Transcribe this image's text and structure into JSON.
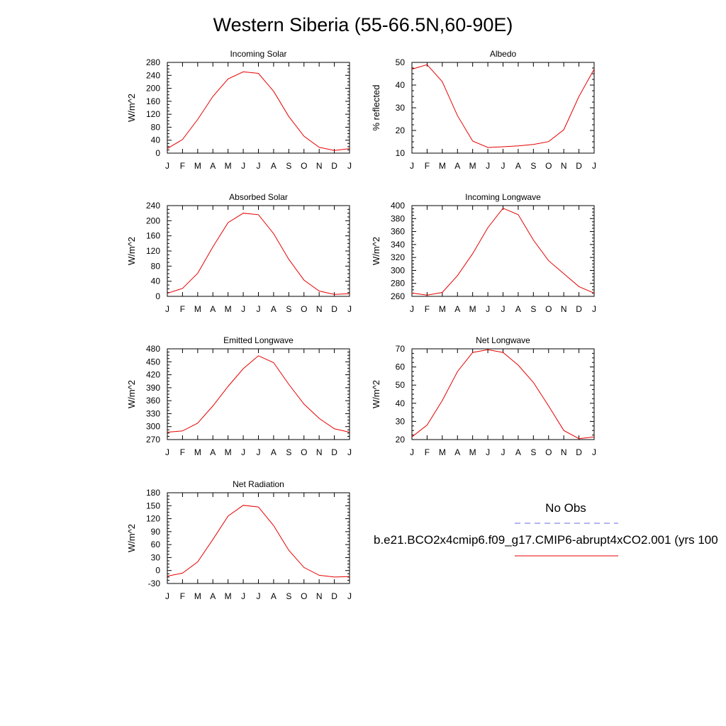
{
  "title": "Western Siberia (55-66.5N,60-90E)",
  "legend": {
    "obs_label": "No Obs",
    "obs_color": "#6a6ae6",
    "model_label": "b.e21.BCO2x4cmip6.f09_g17.CMIP6-abrupt4xCO2.001 (yrs 100",
    "model_color": "#e60000"
  },
  "chart_data": [
    {
      "type": "line",
      "title": "Incoming Solar",
      "ylabel": "W/m^2",
      "x": [
        "J",
        "F",
        "M",
        "A",
        "M",
        "J",
        "J",
        "A",
        "S",
        "O",
        "N",
        "D",
        "J"
      ],
      "ylim": [
        0,
        280
      ],
      "yticks": [
        0,
        40,
        80,
        120,
        160,
        200,
        240,
        280
      ],
      "series": [
        {
          "values": [
            14,
            42,
            104,
            175,
            229,
            251,
            246,
            191,
            113,
            52,
            18,
            8,
            14
          ]
        }
      ]
    },
    {
      "type": "line",
      "title": "Albedo",
      "ylabel": "% reflected",
      "x": [
        "J",
        "F",
        "M",
        "A",
        "M",
        "J",
        "J",
        "A",
        "S",
        "O",
        "N",
        "D",
        "J"
      ],
      "ylim": [
        10,
        50
      ],
      "yticks": [
        10,
        20,
        30,
        40,
        50
      ],
      "series": [
        {
          "values": [
            47,
            49,
            41.5,
            26.5,
            15.3,
            12.5,
            12.8,
            13.2,
            13.8,
            15.1,
            20.3,
            35,
            47
          ]
        }
      ]
    },
    {
      "type": "line",
      "title": "Absorbed Solar",
      "ylabel": "W/m^2",
      "x": [
        "J",
        "F",
        "M",
        "A",
        "M",
        "J",
        "J",
        "A",
        "S",
        "O",
        "N",
        "D",
        "J"
      ],
      "ylim": [
        0,
        240
      ],
      "yticks": [
        0,
        40,
        80,
        120,
        160,
        200,
        240
      ],
      "series": [
        {
          "values": [
            8,
            21,
            61,
            131,
            195,
            220,
            216,
            166,
            98,
            43,
            14,
            5,
            7
          ]
        }
      ]
    },
    {
      "type": "line",
      "title": "Incoming Longwave",
      "ylabel": "W/m^2",
      "x": [
        "J",
        "F",
        "M",
        "A",
        "M",
        "J",
        "J",
        "A",
        "S",
        "O",
        "N",
        "D",
        "J"
      ],
      "ylim": [
        260,
        400
      ],
      "yticks": [
        260,
        280,
        300,
        320,
        340,
        360,
        380,
        400
      ],
      "series": [
        {
          "values": [
            265,
            262,
            266,
            292,
            326,
            366,
            396,
            386,
            347,
            315,
            295,
            275,
            265
          ]
        }
      ]
    },
    {
      "type": "line",
      "title": "Emitted Longwave",
      "ylabel": "W/m^2",
      "x": [
        "J",
        "F",
        "M",
        "A",
        "M",
        "J",
        "J",
        "A",
        "S",
        "O",
        "N",
        "D",
        "J"
      ],
      "ylim": [
        270,
        480
      ],
      "yticks": [
        270,
        300,
        330,
        360,
        390,
        420,
        450,
        480
      ],
      "series": [
        {
          "values": [
            287,
            290,
            308,
            348,
            393,
            434,
            464,
            448,
            398,
            352,
            319,
            295,
            287
          ]
        }
      ]
    },
    {
      "type": "line",
      "title": "Net Longwave",
      "ylabel": "W/m^2",
      "x": [
        "J",
        "F",
        "M",
        "A",
        "M",
        "J",
        "J",
        "A",
        "S",
        "O",
        "N",
        "D",
        "J"
      ],
      "ylim": [
        20,
        70
      ],
      "yticks": [
        20,
        30,
        40,
        50,
        60,
        70
      ],
      "series": [
        {
          "values": [
            21.5,
            28,
            41.5,
            57.5,
            68,
            69.5,
            68,
            61,
            51.5,
            38.5,
            25,
            20.5,
            21.5
          ]
        }
      ]
    },
    {
      "type": "line",
      "title": "Net Radiation",
      "ylabel": "W/m^2",
      "x": [
        "J",
        "F",
        "M",
        "A",
        "M",
        "J",
        "J",
        "A",
        "S",
        "O",
        "N",
        "D",
        "J"
      ],
      "ylim": [
        -30,
        180
      ],
      "yticks": [
        -30,
        0,
        30,
        60,
        90,
        120,
        150,
        180
      ],
      "series": [
        {
          "values": [
            -13,
            -6,
            20,
            72,
            126,
            151,
            147,
            104,
            47,
            7,
            -11,
            -15,
            -14
          ]
        }
      ]
    }
  ]
}
